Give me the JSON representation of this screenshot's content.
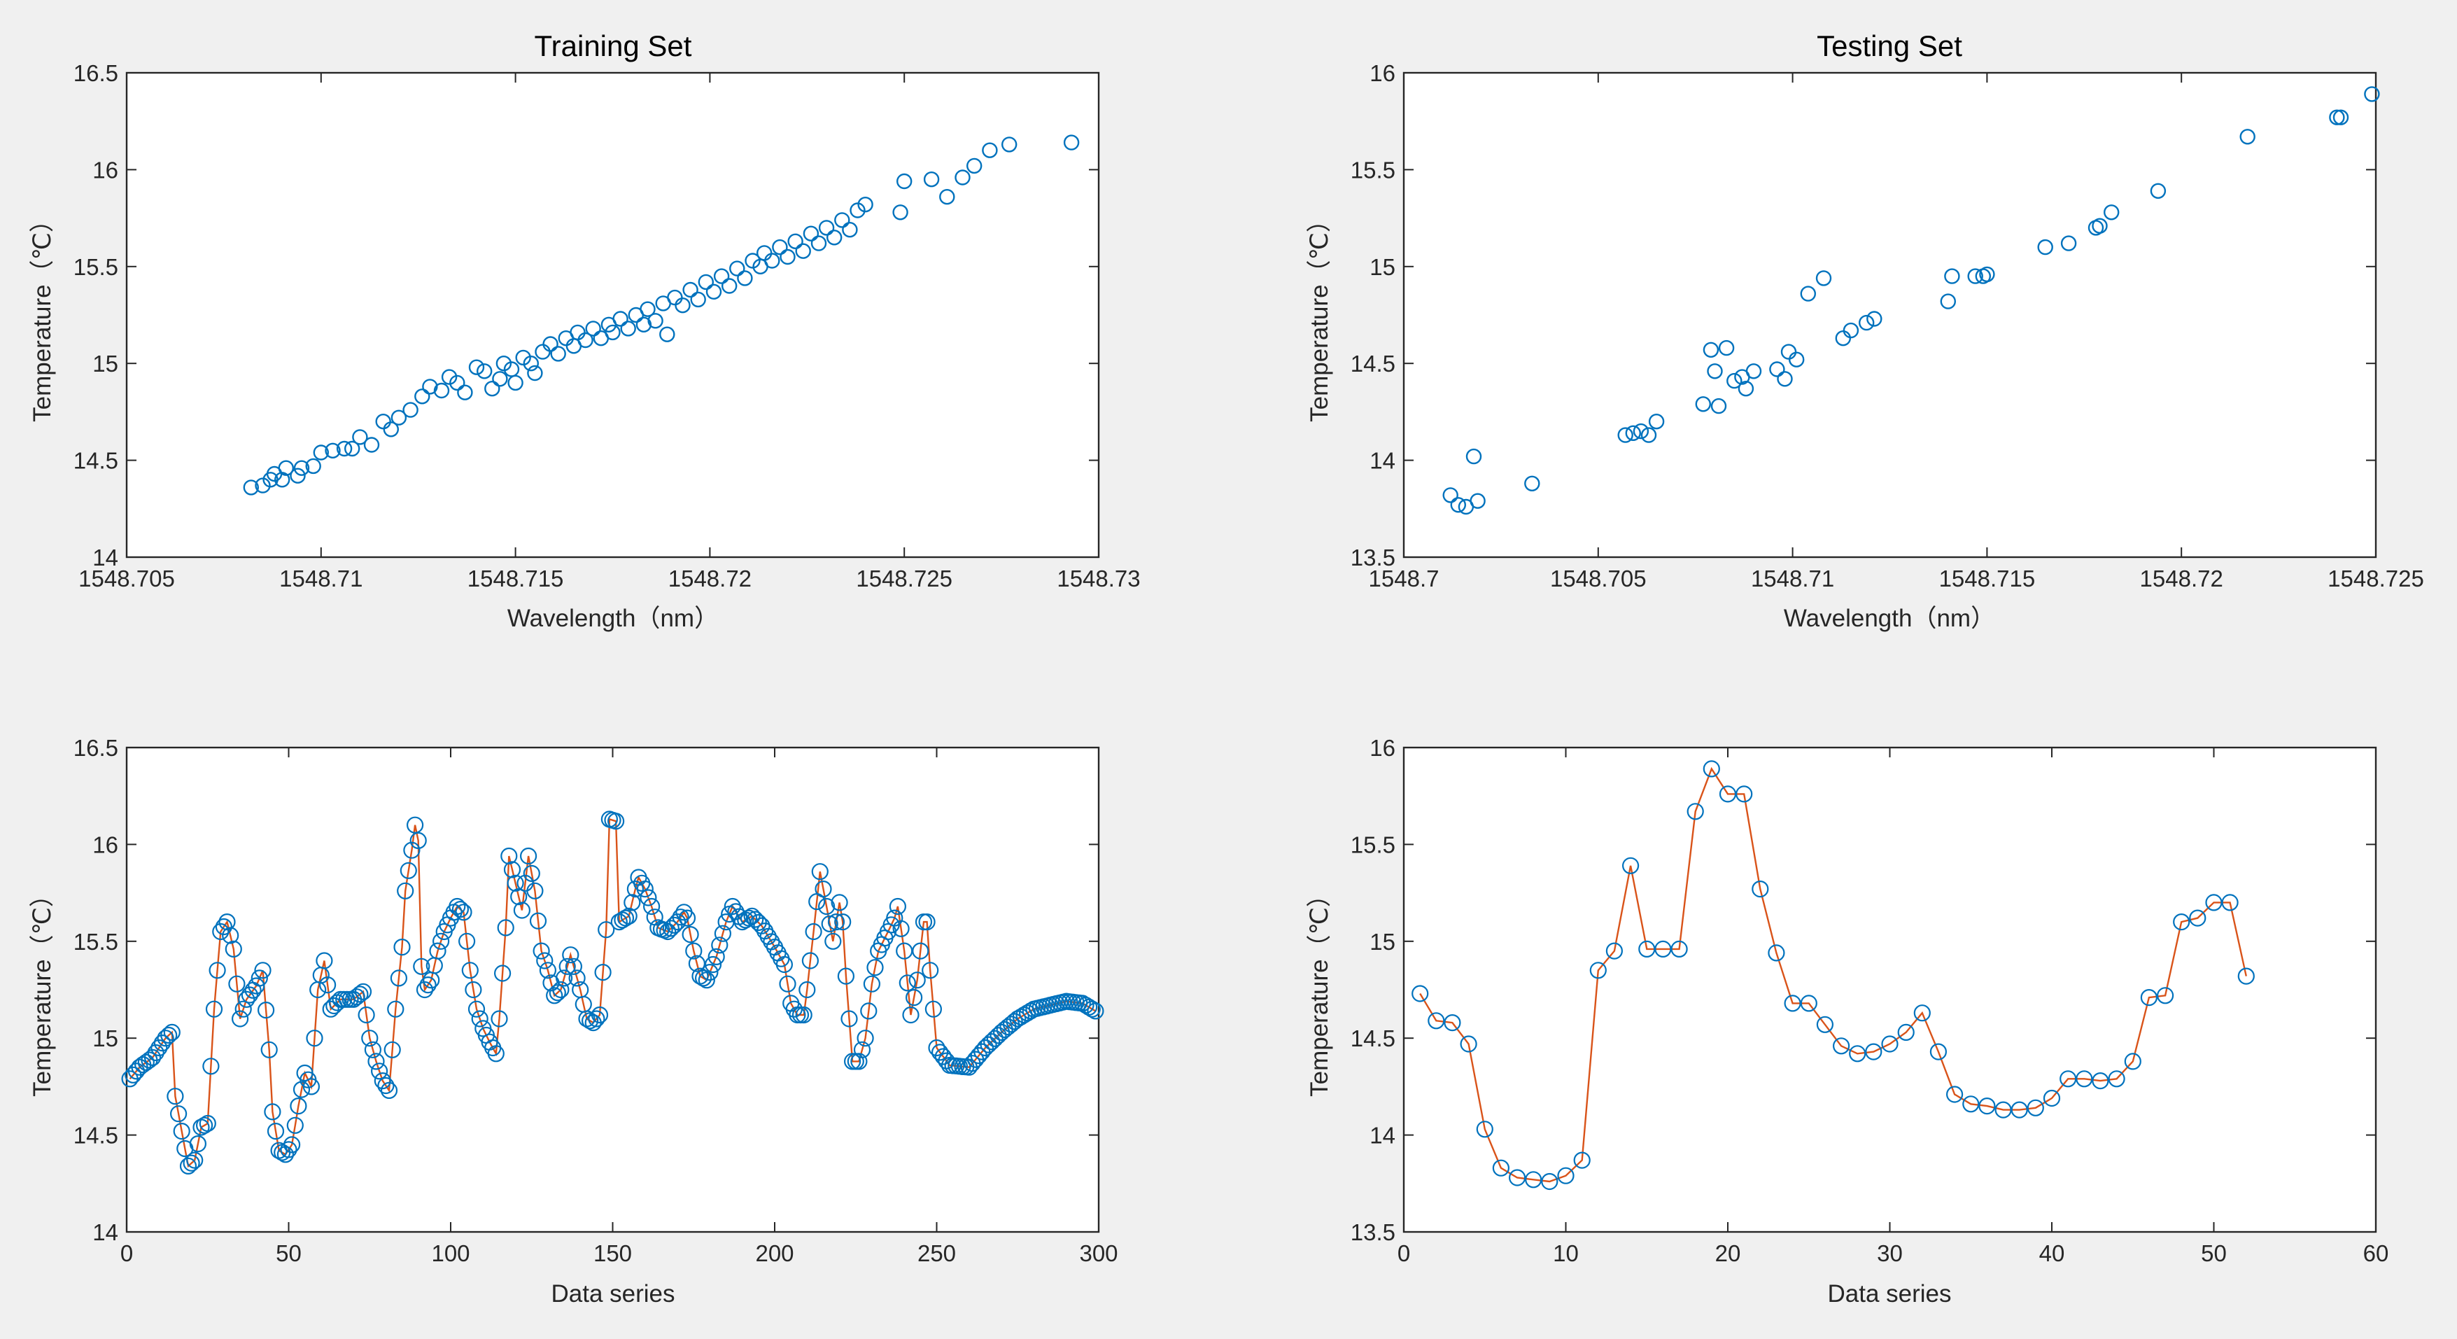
{
  "colors": {
    "marker": "#0072BD",
    "line": "#D95319",
    "background": "#f0f0f0"
  },
  "chart_data": [
    {
      "id": "train-scatter",
      "type": "scatter",
      "title": "Training Set",
      "xlabel": "Wavelength（nm）",
      "ylabel": "Temperature（℃）",
      "xlim": [
        1548.705,
        1548.73
      ],
      "ylim": [
        14,
        16.5
      ],
      "xticks": [
        1548.705,
        1548.71,
        1548.715,
        1548.72,
        1548.725,
        1548.73
      ],
      "xtick_labels": [
        "1548.705",
        "1548.71",
        "1548.715",
        "1548.72",
        "1548.725",
        "1548.73"
      ],
      "yticks": [
        14,
        14.5,
        15,
        15.5,
        16,
        16.5
      ],
      "ytick_labels": [
        "14",
        "14.5",
        "15",
        "15.5",
        "16",
        "16.5"
      ],
      "points": [
        [
          1548.7082,
          14.36
        ],
        [
          1548.7085,
          14.37
        ],
        [
          1548.7087,
          14.4
        ],
        [
          1548.7088,
          14.43
        ],
        [
          1548.709,
          14.4
        ],
        [
          1548.7091,
          14.46
        ],
        [
          1548.7094,
          14.42
        ],
        [
          1548.7095,
          14.46
        ],
        [
          1548.7098,
          14.47
        ],
        [
          1548.71,
          14.54
        ],
        [
          1548.7103,
          14.55
        ],
        [
          1548.7106,
          14.56
        ],
        [
          1548.7108,
          14.56
        ],
        [
          1548.711,
          14.62
        ],
        [
          1548.7113,
          14.58
        ],
        [
          1548.7116,
          14.7
        ],
        [
          1548.7118,
          14.66
        ],
        [
          1548.712,
          14.72
        ],
        [
          1548.7123,
          14.76
        ],
        [
          1548.7126,
          14.83
        ],
        [
          1548.7128,
          14.88
        ],
        [
          1548.7131,
          14.86
        ],
        [
          1548.7133,
          14.93
        ],
        [
          1548.7135,
          14.9
        ],
        [
          1548.7137,
          14.85
        ],
        [
          1548.714,
          14.98
        ],
        [
          1548.7142,
          14.96
        ],
        [
          1548.7144,
          14.87
        ],
        [
          1548.7146,
          14.92
        ],
        [
          1548.7147,
          15.0
        ],
        [
          1548.7149,
          14.97
        ],
        [
          1548.715,
          14.9
        ],
        [
          1548.7152,
          15.03
        ],
        [
          1548.7154,
          15.0
        ],
        [
          1548.7155,
          14.95
        ],
        [
          1548.7157,
          15.06
        ],
        [
          1548.7159,
          15.1
        ],
        [
          1548.7161,
          15.05
        ],
        [
          1548.7163,
          15.13
        ],
        [
          1548.7165,
          15.09
        ],
        [
          1548.7166,
          15.16
        ],
        [
          1548.7168,
          15.12
        ],
        [
          1548.717,
          15.18
        ],
        [
          1548.7172,
          15.13
        ],
        [
          1548.7174,
          15.2
        ],
        [
          1548.7175,
          15.16
        ],
        [
          1548.7177,
          15.23
        ],
        [
          1548.7179,
          15.18
        ],
        [
          1548.7181,
          15.25
        ],
        [
          1548.7183,
          15.2
        ],
        [
          1548.7184,
          15.28
        ],
        [
          1548.7186,
          15.22
        ],
        [
          1548.7188,
          15.31
        ],
        [
          1548.7189,
          15.15
        ],
        [
          1548.7191,
          15.34
        ],
        [
          1548.7193,
          15.3
        ],
        [
          1548.7195,
          15.38
        ],
        [
          1548.7197,
          15.33
        ],
        [
          1548.7199,
          15.42
        ],
        [
          1548.7201,
          15.37
        ],
        [
          1548.7203,
          15.45
        ],
        [
          1548.7205,
          15.4
        ],
        [
          1548.7207,
          15.49
        ],
        [
          1548.7209,
          15.44
        ],
        [
          1548.7211,
          15.53
        ],
        [
          1548.7213,
          15.5
        ],
        [
          1548.7214,
          15.57
        ],
        [
          1548.7216,
          15.53
        ],
        [
          1548.7218,
          15.6
        ],
        [
          1548.722,
          15.55
        ],
        [
          1548.7222,
          15.63
        ],
        [
          1548.7224,
          15.58
        ],
        [
          1548.7226,
          15.67
        ],
        [
          1548.7228,
          15.62
        ],
        [
          1548.723,
          15.7
        ],
        [
          1548.7232,
          15.65
        ],
        [
          1548.7234,
          15.74
        ],
        [
          1548.7236,
          15.69
        ],
        [
          1548.7238,
          15.79
        ],
        [
          1548.724,
          15.82
        ],
        [
          1548.7249,
          15.78
        ],
        [
          1548.725,
          15.94
        ],
        [
          1548.7257,
          15.95
        ],
        [
          1548.7261,
          15.86
        ],
        [
          1548.7265,
          15.96
        ],
        [
          1548.7268,
          16.02
        ],
        [
          1548.7272,
          16.1
        ],
        [
          1548.7277,
          16.13
        ],
        [
          1548.7293,
          16.14
        ]
      ]
    },
    {
      "id": "test-scatter",
      "type": "scatter",
      "title": "Testing Set",
      "xlabel": "Wavelength（nm）",
      "ylabel": "Temperature（℃）",
      "xlim": [
        1548.7,
        1548.725
      ],
      "ylim": [
        13.5,
        16
      ],
      "xticks": [
        1548.7,
        1548.705,
        1548.71,
        1548.715,
        1548.72,
        1548.725
      ],
      "xtick_labels": [
        "1548.7",
        "1548.705",
        "1548.71",
        "1548.715",
        "1548.72",
        "1548.725"
      ],
      "yticks": [
        13.5,
        14,
        14.5,
        15,
        15.5,
        16
      ],
      "ytick_labels": [
        "13.5",
        "14",
        "14.5",
        "15",
        "15.5",
        "16"
      ],
      "points": [
        [
          1548.7012,
          13.82
        ],
        [
          1548.7014,
          13.77
        ],
        [
          1548.7016,
          13.76
        ],
        [
          1548.7018,
          14.02
        ],
        [
          1548.7019,
          13.79
        ],
        [
          1548.7033,
          13.88
        ],
        [
          1548.7057,
          14.13
        ],
        [
          1548.7059,
          14.14
        ],
        [
          1548.7061,
          14.15
        ],
        [
          1548.7063,
          14.13
        ],
        [
          1548.7065,
          14.2
        ],
        [
          1548.7077,
          14.29
        ],
        [
          1548.7079,
          14.57
        ],
        [
          1548.708,
          14.46
        ],
        [
          1548.7081,
          14.28
        ],
        [
          1548.7083,
          14.58
        ],
        [
          1548.7085,
          14.41
        ],
        [
          1548.7087,
          14.43
        ],
        [
          1548.7088,
          14.37
        ],
        [
          1548.709,
          14.46
        ],
        [
          1548.7096,
          14.47
        ],
        [
          1548.7098,
          14.42
        ],
        [
          1548.7099,
          14.56
        ],
        [
          1548.7101,
          14.52
        ],
        [
          1548.7104,
          14.86
        ],
        [
          1548.7108,
          14.94
        ],
        [
          1548.7113,
          14.63
        ],
        [
          1548.7115,
          14.67
        ],
        [
          1548.7119,
          14.71
        ],
        [
          1548.7121,
          14.73
        ],
        [
          1548.714,
          14.82
        ],
        [
          1548.7141,
          14.95
        ],
        [
          1548.7147,
          14.95
        ],
        [
          1548.7149,
          14.95
        ],
        [
          1548.715,
          14.96
        ],
        [
          1548.7165,
          15.1
        ],
        [
          1548.7171,
          15.12
        ],
        [
          1548.7178,
          15.2
        ],
        [
          1548.7179,
          15.21
        ],
        [
          1548.7182,
          15.28
        ],
        [
          1548.7194,
          15.39
        ],
        [
          1548.7217,
          15.67
        ],
        [
          1548.724,
          15.77
        ],
        [
          1548.7241,
          15.77
        ],
        [
          1548.7249,
          15.89
        ]
      ]
    },
    {
      "id": "train-series",
      "type": "line",
      "xlabel": "Data series",
      "ylabel": "Temperature（℃）",
      "xlim": [
        0,
        300
      ],
      "ylim": [
        14,
        16.5
      ],
      "xticks": [
        0,
        50,
        100,
        150,
        200,
        250,
        300
      ],
      "xtick_labels": [
        "0",
        "50",
        "100",
        "150",
        "200",
        "250",
        "300"
      ],
      "yticks": [
        14,
        14.5,
        15,
        15.5,
        16,
        16.5
      ],
      "ytick_labels": [
        "14",
        "14.5",
        "15",
        "15.5",
        "16",
        "16.5"
      ],
      "anchors": [
        [
          1,
          14.79
        ],
        [
          4,
          14.85
        ],
        [
          8,
          14.9
        ],
        [
          12,
          15.0
        ],
        [
          14,
          15.03
        ],
        [
          15,
          14.7
        ],
        [
          17,
          14.52
        ],
        [
          19,
          14.34
        ],
        [
          21,
          14.37
        ],
        [
          23,
          14.54
        ],
        [
          25,
          14.56
        ],
        [
          27,
          15.15
        ],
        [
          29,
          15.55
        ],
        [
          31,
          15.6
        ],
        [
          33,
          15.46
        ],
        [
          35,
          15.1
        ],
        [
          37,
          15.2
        ],
        [
          40,
          15.27
        ],
        [
          42,
          15.35
        ],
        [
          44,
          14.94
        ],
        [
          45,
          14.62
        ],
        [
          47,
          14.42
        ],
        [
          49,
          14.4
        ],
        [
          51,
          14.45
        ],
        [
          53,
          14.65
        ],
        [
          55,
          14.82
        ],
        [
          57,
          14.75
        ],
        [
          59,
          15.25
        ],
        [
          61,
          15.4
        ],
        [
          63,
          15.15
        ],
        [
          66,
          15.2
        ],
        [
          70,
          15.2
        ],
        [
          73,
          15.24
        ],
        [
          75,
          15.0
        ],
        [
          77,
          14.88
        ],
        [
          79,
          14.78
        ],
        [
          81,
          14.73
        ],
        [
          83,
          15.15
        ],
        [
          85,
          15.47
        ],
        [
          86,
          15.76
        ],
        [
          88,
          15.97
        ],
        [
          89,
          16.1
        ],
        [
          90,
          16.02
        ],
        [
          91,
          15.37
        ],
        [
          92,
          15.25
        ],
        [
          94,
          15.3
        ],
        [
          96,
          15.45
        ],
        [
          98,
          15.55
        ],
        [
          100,
          15.62
        ],
        [
          102,
          15.68
        ],
        [
          104,
          15.65
        ],
        [
          106,
          15.35
        ],
        [
          108,
          15.15
        ],
        [
          110,
          15.05
        ],
        [
          112,
          14.98
        ],
        [
          114,
          14.92
        ],
        [
          115,
          15.1
        ],
        [
          117,
          15.57
        ],
        [
          118,
          15.94
        ],
        [
          120,
          15.8
        ],
        [
          122,
          15.66
        ],
        [
          124,
          15.94
        ],
        [
          126,
          15.76
        ],
        [
          128,
          15.45
        ],
        [
          130,
          15.35
        ],
        [
          132,
          15.22
        ],
        [
          134,
          15.25
        ],
        [
          137,
          15.43
        ],
        [
          140,
          15.25
        ],
        [
          142,
          15.1
        ],
        [
          144,
          15.08
        ],
        [
          146,
          15.12
        ],
        [
          148,
          15.56
        ],
        [
          149,
          16.13
        ],
        [
          151,
          16.12
        ],
        [
          152,
          15.6
        ],
        [
          155,
          15.63
        ],
        [
          157,
          15.77
        ],
        [
          158,
          15.83
        ],
        [
          160,
          15.77
        ],
        [
          162,
          15.68
        ],
        [
          164,
          15.57
        ],
        [
          167,
          15.55
        ],
        [
          170,
          15.6
        ],
        [
          172,
          15.65
        ],
        [
          173,
          15.62
        ],
        [
          175,
          15.45
        ],
        [
          177,
          15.32
        ],
        [
          179,
          15.3
        ],
        [
          182,
          15.42
        ],
        [
          185,
          15.6
        ],
        [
          187,
          15.68
        ],
        [
          190,
          15.6
        ],
        [
          193,
          15.63
        ],
        [
          196,
          15.58
        ],
        [
          200,
          15.47
        ],
        [
          203,
          15.38
        ],
        [
          205,
          15.18
        ],
        [
          207,
          15.12
        ],
        [
          209,
          15.12
        ],
        [
          210,
          15.25
        ],
        [
          212,
          15.55
        ],
        [
          214,
          15.86
        ],
        [
          216,
          15.68
        ],
        [
          218,
          15.5
        ],
        [
          220,
          15.7
        ],
        [
          221,
          15.6
        ],
        [
          222,
          15.32
        ],
        [
          224,
          14.88
        ],
        [
          226,
          14.88
        ],
        [
          228,
          15.0
        ],
        [
          230,
          15.28
        ],
        [
          232,
          15.45
        ],
        [
          235,
          15.55
        ],
        [
          237,
          15.62
        ],
        [
          238,
          15.68
        ],
        [
          240,
          15.45
        ],
        [
          242,
          15.12
        ],
        [
          244,
          15.3
        ],
        [
          246,
          15.6
        ],
        [
          247,
          15.6
        ],
        [
          248,
          15.35
        ],
        [
          250,
          14.95
        ],
        [
          254,
          14.86
        ],
        [
          260,
          14.85
        ],
        [
          265,
          14.95
        ],
        [
          270,
          15.03
        ],
        [
          275,
          15.1
        ],
        [
          280,
          15.15
        ],
        [
          285,
          15.17
        ],
        [
          290,
          15.19
        ],
        [
          295,
          15.18
        ],
        [
          299,
          15.14
        ]
      ]
    },
    {
      "id": "test-series",
      "type": "line",
      "xlabel": "Data series",
      "ylabel": "Temperature（℃）",
      "xlim": [
        0,
        60
      ],
      "ylim": [
        13.5,
        16
      ],
      "xticks": [
        0,
        10,
        20,
        30,
        40,
        50,
        60
      ],
      "xtick_labels": [
        "0",
        "10",
        "20",
        "30",
        "40",
        "50",
        "60"
      ],
      "yticks": [
        13.5,
        14,
        14.5,
        15,
        15.5,
        16
      ],
      "ytick_labels": [
        "13.5",
        "14",
        "14.5",
        "15",
        "15.5",
        "16"
      ],
      "x": [
        1,
        2,
        3,
        4,
        5,
        6,
        7,
        8,
        9,
        10,
        11,
        12,
        13,
        14,
        15,
        16,
        17,
        18,
        19,
        20,
        21,
        22,
        23,
        24,
        25,
        26,
        27,
        28,
        29,
        30,
        31,
        32,
        33,
        34,
        35,
        36,
        37,
        38,
        39,
        40,
        41,
        42,
        43,
        44,
        45,
        46,
        47,
        48,
        49,
        50,
        51,
        52
      ],
      "y": [
        14.73,
        14.59,
        14.58,
        14.47,
        14.03,
        13.83,
        13.78,
        13.77,
        13.76,
        13.79,
        13.87,
        14.85,
        14.95,
        15.39,
        14.96,
        14.96,
        14.96,
        15.67,
        15.89,
        15.76,
        15.76,
        15.27,
        14.94,
        14.68,
        14.68,
        14.57,
        14.46,
        14.42,
        14.43,
        14.47,
        14.53,
        14.63,
        14.43,
        14.21,
        14.16,
        14.15,
        14.13,
        14.13,
        14.14,
        14.19,
        14.29,
        14.29,
        14.28,
        14.29,
        14.38,
        14.71,
        14.72,
        15.1,
        15.12,
        15.2,
        15.2,
        14.82
      ]
    }
  ]
}
